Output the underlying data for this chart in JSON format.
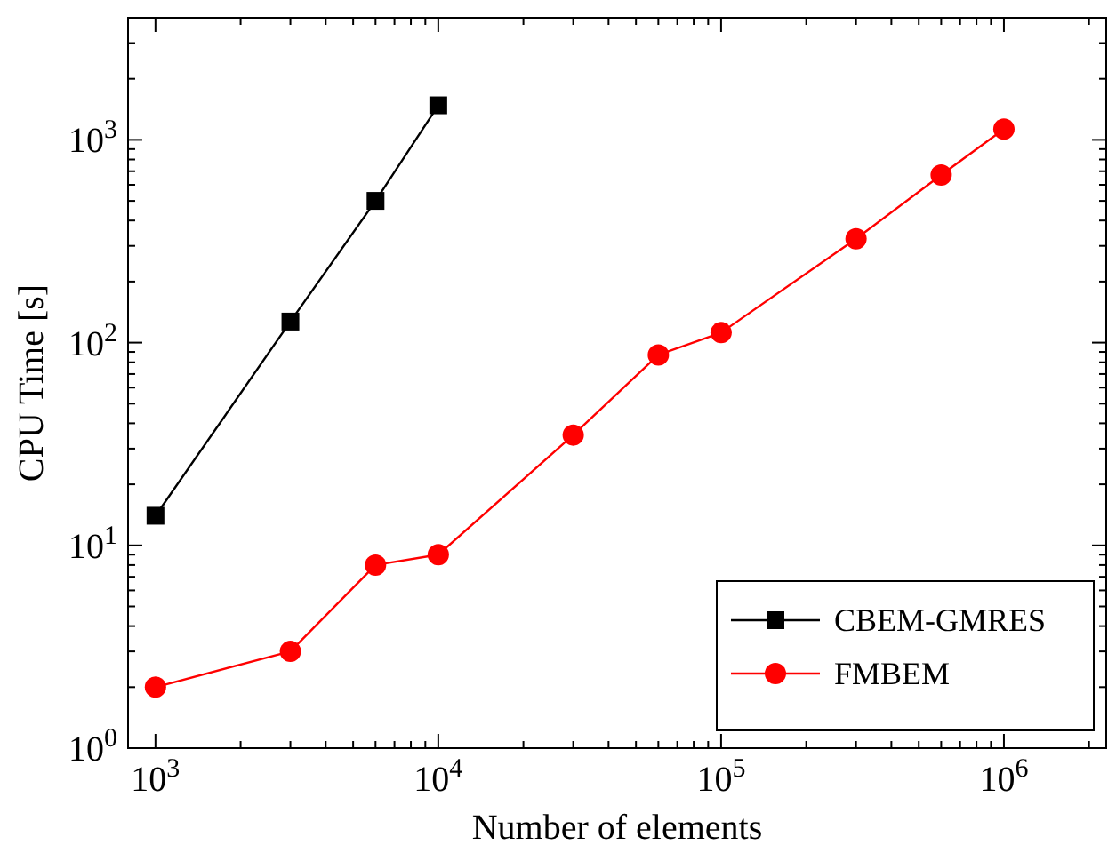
{
  "chart_data": {
    "type": "line",
    "xlabel": "Number of elements",
    "ylabel": "CPU Time [s]",
    "log": "xy",
    "xlim": [
      800,
      2300000
    ],
    "ylim": [
      1,
      4000
    ],
    "xticks": [
      {
        "value": 1000,
        "label": "10$^{3}$"
      },
      {
        "value": 2000,
        "label": null
      },
      {
        "value": 3000,
        "label": null
      },
      {
        "value": 4000,
        "label": null
      },
      {
        "value": 5000,
        "label": null
      },
      {
        "value": 6000,
        "label": null
      },
      {
        "value": 7000,
        "label": null
      },
      {
        "value": 8000,
        "label": null
      },
      {
        "value": 9000,
        "label": null
      },
      {
        "value": 10000,
        "label": "10$^{4}$"
      },
      {
        "value": 20000,
        "label": null
      },
      {
        "value": 30000,
        "label": null
      },
      {
        "value": 40000,
        "label": null
      },
      {
        "value": 50000,
        "label": null
      },
      {
        "value": 60000,
        "label": null
      },
      {
        "value": 70000,
        "label": null
      },
      {
        "value": 80000,
        "label": null
      },
      {
        "value": 90000,
        "label": null
      },
      {
        "value": 100000,
        "label": "10$^{5}$"
      },
      {
        "value": 200000,
        "label": null
      },
      {
        "value": 300000,
        "label": null
      },
      {
        "value": 400000,
        "label": null
      },
      {
        "value": 500000,
        "label": null
      },
      {
        "value": 600000,
        "label": null
      },
      {
        "value": 700000,
        "label": null
      },
      {
        "value": 800000,
        "label": null
      },
      {
        "value": 900000,
        "label": null
      },
      {
        "value": 1000000,
        "label": "10$^{6}$"
      },
      {
        "value": 2000000,
        "label": null
      }
    ],
    "yticks": [
      {
        "value": 1,
        "label": "10$^{0}$"
      },
      {
        "value": 2,
        "label": null
      },
      {
        "value": 3,
        "label": null
      },
      {
        "value": 4,
        "label": null
      },
      {
        "value": 5,
        "label": null
      },
      {
        "value": 6,
        "label": null
      },
      {
        "value": 7,
        "label": null
      },
      {
        "value": 8,
        "label": null
      },
      {
        "value": 9,
        "label": null
      },
      {
        "value": 10,
        "label": "10$^{1}$"
      },
      {
        "value": 20,
        "label": null
      },
      {
        "value": 30,
        "label": null
      },
      {
        "value": 40,
        "label": null
      },
      {
        "value": 50,
        "label": null
      },
      {
        "value": 60,
        "label": null
      },
      {
        "value": 70,
        "label": null
      },
      {
        "value": 80,
        "label": null
      },
      {
        "value": 90,
        "label": null
      },
      {
        "value": 100,
        "label": "10$^{2}$"
      },
      {
        "value": 200,
        "label": null
      },
      {
        "value": 300,
        "label": null
      },
      {
        "value": 400,
        "label": null
      },
      {
        "value": 500,
        "label": null
      },
      {
        "value": 600,
        "label": null
      },
      {
        "value": 700,
        "label": null
      },
      {
        "value": 800,
        "label": null
      },
      {
        "value": 900,
        "label": null
      },
      {
        "value": 1000,
        "label": "10$^{3}$"
      },
      {
        "value": 2000,
        "label": null
      },
      {
        "value": 3000,
        "label": null
      },
      {
        "value": 4000,
        "label": null
      }
    ],
    "legend": "bottom right",
    "grid": false,
    "series": [
      {
        "name": "CBEM-GMRES",
        "color": "#000000",
        "marker": "square",
        "x": [
          1000,
          3000,
          6000,
          10000
        ],
        "values": [
          14,
          127,
          500,
          1480
        ]
      },
      {
        "name": "FMBEM",
        "color": "#ff0000",
        "marker": "circle",
        "x": [
          1000,
          3000,
          6000,
          10000,
          30000,
          60000,
          100000,
          300000,
          600000,
          1000000
        ],
        "values": [
          2,
          3,
          8,
          9,
          35,
          87,
          112,
          325,
          670,
          1130
        ]
      }
    ]
  }
}
